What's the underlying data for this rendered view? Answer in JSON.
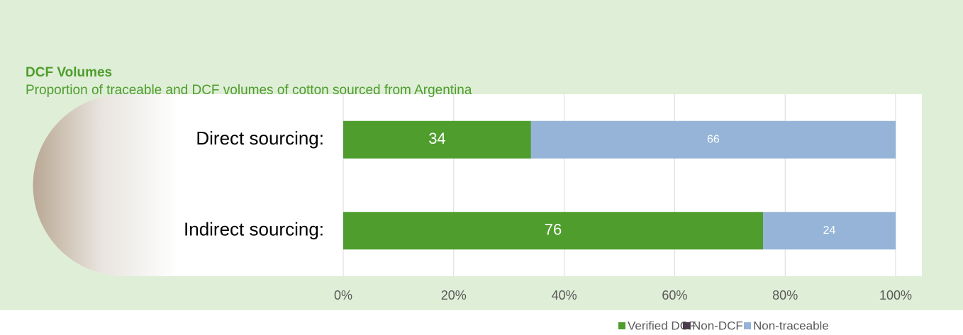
{
  "chart_data": {
    "type": "stacked-bar-horizontal",
    "title": "DCF Volumes",
    "subtitle": "Proportion of traceable and DCF volumes of cotton sourced from Argentina",
    "categories": [
      "Direct sourcing:",
      "Indirect sourcing:"
    ],
    "series": [
      {
        "name": "Verified DCF",
        "color": "#4e9d2d",
        "values": [
          34,
          76
        ]
      },
      {
        "name": "Non-DCF",
        "color": "#4b3a4c",
        "values": [
          0,
          0
        ]
      },
      {
        "name": "Non-traceable",
        "color": "#95b4d8",
        "values": [
          66,
          24
        ]
      }
    ],
    "xlim": [
      0,
      100
    ],
    "xticks": [
      {
        "value": 0,
        "label": "0%"
      },
      {
        "value": 20,
        "label": "20%"
      },
      {
        "value": 40,
        "label": "40%"
      },
      {
        "value": 60,
        "label": "60%"
      },
      {
        "value": 80,
        "label": "80%"
      },
      {
        "value": 100,
        "label": "100%"
      }
    ],
    "grid": true,
    "legend": "bottom-right"
  }
}
